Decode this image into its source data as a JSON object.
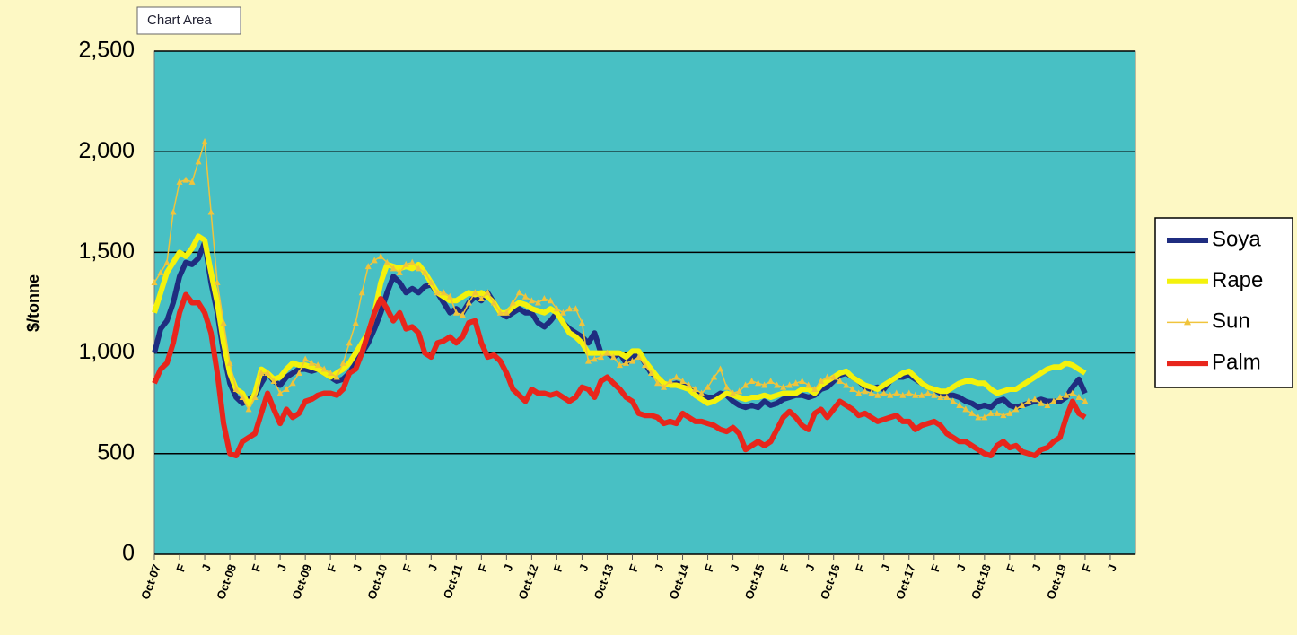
{
  "tooltip": "Chart Area",
  "chart_data": {
    "type": "line",
    "ylabel": "$/tonne",
    "categories": [
      "Oct-07",
      null,
      null,
      null,
      "F",
      null,
      null,
      null,
      "J",
      null,
      null,
      null,
      "Oct-08",
      null,
      null,
      null,
      "F",
      null,
      null,
      null,
      "J",
      null,
      null,
      null,
      "Oct-09",
      null,
      null,
      null,
      "F",
      null,
      null,
      null,
      "J",
      null,
      null,
      null,
      "Oct-10",
      null,
      null,
      null,
      "F",
      null,
      null,
      null,
      "J",
      null,
      null,
      null,
      "Oct-11",
      null,
      null,
      null,
      "F",
      null,
      null,
      null,
      "J",
      null,
      null,
      null,
      "Oct-12",
      null,
      null,
      null,
      "F",
      null,
      null,
      null,
      "J",
      null,
      null,
      null,
      "Oct-13",
      null,
      null,
      null,
      "F",
      null,
      null,
      null,
      "J",
      null,
      null,
      null,
      "Oct-14",
      null,
      null,
      null,
      "F",
      null,
      null,
      null,
      "J",
      null,
      null,
      null,
      "Oct-15",
      null,
      null,
      null,
      "F",
      null,
      null,
      null,
      "J",
      null,
      null,
      null,
      "Oct-16",
      null,
      null,
      null,
      "F",
      null,
      null,
      null,
      "J",
      null,
      null,
      null,
      "Oct-17",
      null,
      null,
      null,
      "F",
      null,
      null,
      null,
      "J",
      null,
      null,
      null,
      "Oct-18",
      null,
      null,
      null,
      "F",
      null,
      null,
      null,
      "J",
      null,
      null,
      null,
      "Oct-19",
      null,
      null,
      null,
      "F",
      null,
      null,
      null,
      "J",
      null,
      null,
      null
    ],
    "series": [
      {
        "name": "Soya",
        "color": "#1f2d80",
        "width": 6,
        "marker": false,
        "values": [
          1000,
          1120,
          1160,
          1250,
          1380,
          1450,
          1440,
          1470,
          1550,
          1350,
          1200,
          1000,
          850,
          780,
          750,
          770,
          790,
          850,
          900,
          860,
          840,
          880,
          900,
          920,
          920,
          910,
          920,
          900,
          880,
          860,
          870,
          900,
          950,
          1000,
          1050,
          1120,
          1200,
          1300,
          1380,
          1350,
          1300,
          1320,
          1300,
          1330,
          1340,
          1300,
          1250,
          1200,
          1220,
          1200,
          1250,
          1280,
          1260,
          1300,
          1250,
          1200,
          1180,
          1200,
          1220,
          1200,
          1200,
          1150,
          1130,
          1160,
          1200,
          1150,
          1120,
          1100,
          1080,
          1050,
          1100,
          1000,
          1000,
          980,
          1000,
          950,
          980,
          1000,
          950,
          900,
          880,
          850,
          840,
          850,
          840,
          830,
          800,
          790,
          780,
          780,
          800,
          790,
          760,
          740,
          730,
          740,
          730,
          760,
          740,
          750,
          770,
          780,
          790,
          790,
          780,
          790,
          820,
          830,
          860,
          890,
          900,
          880,
          860,
          830,
          820,
          830,
          820,
          860,
          880,
          880,
          890,
          870,
          850,
          830,
          820,
          800,
          790,
          790,
          780,
          760,
          750,
          730,
          740,
          730,
          760,
          770,
          740,
          730,
          740,
          750,
          760,
          770,
          760,
          760,
          760,
          780,
          830,
          870,
          800,
          null,
          null,
          null,
          null,
          null,
          null,
          null
        ]
      },
      {
        "name": "Rape",
        "color": "#f4f20c",
        "width": 6,
        "marker": false,
        "values": [
          1200,
          1300,
          1400,
          1450,
          1500,
          1480,
          1520,
          1580,
          1560,
          1400,
          1250,
          1050,
          900,
          820,
          800,
          740,
          800,
          920,
          900,
          870,
          880,
          920,
          950,
          940,
          940,
          930,
          920,
          900,
          880,
          900,
          920,
          950,
          1000,
          1050,
          1100,
          1200,
          1350,
          1440,
          1430,
          1420,
          1430,
          1420,
          1440,
          1400,
          1350,
          1300,
          1280,
          1260,
          1260,
          1280,
          1300,
          1290,
          1300,
          1280,
          1250,
          1200,
          1200,
          1230,
          1250,
          1240,
          1220,
          1210,
          1200,
          1220,
          1200,
          1150,
          1100,
          1080,
          1050,
          1000,
          1000,
          1000,
          1000,
          1000,
          1000,
          980,
          1010,
          1010,
          960,
          920,
          880,
          850,
          840,
          840,
          830,
          820,
          790,
          770,
          750,
          760,
          780,
          800,
          790,
          780,
          770,
          780,
          780,
          790,
          780,
          790,
          800,
          800,
          800,
          820,
          820,
          800,
          840,
          860,
          880,
          900,
          910,
          880,
          860,
          840,
          830,
          820,
          840,
          860,
          880,
          900,
          910,
          880,
          850,
          830,
          820,
          810,
          810,
          830,
          850,
          860,
          860,
          850,
          850,
          820,
          800,
          810,
          820,
          820,
          840,
          860,
          880,
          900,
          920,
          930,
          930,
          950,
          940,
          920,
          900,
          null,
          null,
          null,
          null,
          null,
          null,
          null
        ]
      },
      {
        "name": "Sun",
        "color": "#f0c43c",
        "width": 1.5,
        "marker": true,
        "values": [
          1350,
          1400,
          1450,
          1700,
          1850,
          1860,
          1850,
          1950,
          2050,
          1700,
          1350,
          1150,
          950,
          820,
          780,
          720,
          780,
          900,
          900,
          860,
          800,
          820,
          850,
          900,
          970,
          950,
          940,
          920,
          900,
          880,
          950,
          1050,
          1150,
          1300,
          1430,
          1460,
          1480,
          1450,
          1420,
          1400,
          1440,
          1450,
          1420,
          1400,
          1350,
          1300,
          1300,
          1280,
          1200,
          1190,
          1250,
          1300,
          1270,
          1300,
          1250,
          1200,
          1200,
          1250,
          1300,
          1280,
          1260,
          1250,
          1270,
          1260,
          1220,
          1200,
          1220,
          1220,
          1150,
          960,
          970,
          980,
          1000,
          980,
          940,
          950,
          960,
          980,
          940,
          900,
          850,
          830,
          860,
          880,
          860,
          840,
          820,
          800,
          830,
          880,
          920,
          830,
          800,
          810,
          840,
          860,
          850,
          840,
          860,
          840,
          830,
          840,
          850,
          860,
          840,
          820,
          860,
          880,
          880,
          860,
          840,
          820,
          800,
          810,
          800,
          790,
          800,
          790,
          800,
          790,
          800,
          790,
          790,
          800,
          790,
          780,
          780,
          760,
          740,
          720,
          700,
          680,
          680,
          700,
          700,
          690,
          700,
          720,
          740,
          760,
          770,
          750,
          740,
          760,
          780,
          790,
          800,
          780,
          760,
          null,
          null,
          null,
          null,
          null,
          null,
          null
        ]
      },
      {
        "name": "Palm",
        "color": "#e8261c",
        "width": 6,
        "marker": false,
        "values": [
          850,
          920,
          950,
          1050,
          1200,
          1290,
          1250,
          1250,
          1200,
          1100,
          900,
          650,
          500,
          490,
          560,
          580,
          600,
          700,
          800,
          720,
          650,
          720,
          680,
          700,
          760,
          770,
          790,
          800,
          800,
          790,
          820,
          900,
          920,
          1000,
          1100,
          1200,
          1270,
          1220,
          1160,
          1200,
          1120,
          1130,
          1100,
          1000,
          980,
          1050,
          1060,
          1080,
          1050,
          1080,
          1150,
          1160,
          1050,
          980,
          990,
          960,
          900,
          820,
          790,
          760,
          820,
          800,
          800,
          790,
          800,
          780,
          760,
          780,
          830,
          820,
          780,
          860,
          880,
          850,
          820,
          780,
          760,
          700,
          690,
          690,
          680,
          650,
          660,
          650,
          700,
          680,
          660,
          660,
          650,
          640,
          620,
          610,
          630,
          600,
          520,
          540,
          560,
          540,
          560,
          620,
          680,
          710,
          680,
          640,
          620,
          700,
          720,
          680,
          720,
          760,
          740,
          720,
          690,
          700,
          680,
          660,
          670,
          680,
          690,
          660,
          660,
          620,
          640,
          650,
          660,
          640,
          600,
          580,
          560,
          560,
          540,
          520,
          500,
          490,
          540,
          560,
          530,
          540,
          510,
          500,
          490,
          520,
          530,
          560,
          580,
          680,
          760,
          700,
          680,
          null,
          null,
          null,
          null,
          null,
          null,
          null
        ]
      }
    ],
    "ylim": [
      0,
      2500
    ],
    "yticks": [
      0,
      500,
      {
        "value": 1000,
        "label": "1,000"
      },
      {
        "value": 1500,
        "label": "1,500"
      },
      {
        "value": 2000,
        "label": "2,000"
      },
      {
        "value": 2500,
        "label": "2,500"
      }
    ],
    "grid": true,
    "legend": "right"
  }
}
